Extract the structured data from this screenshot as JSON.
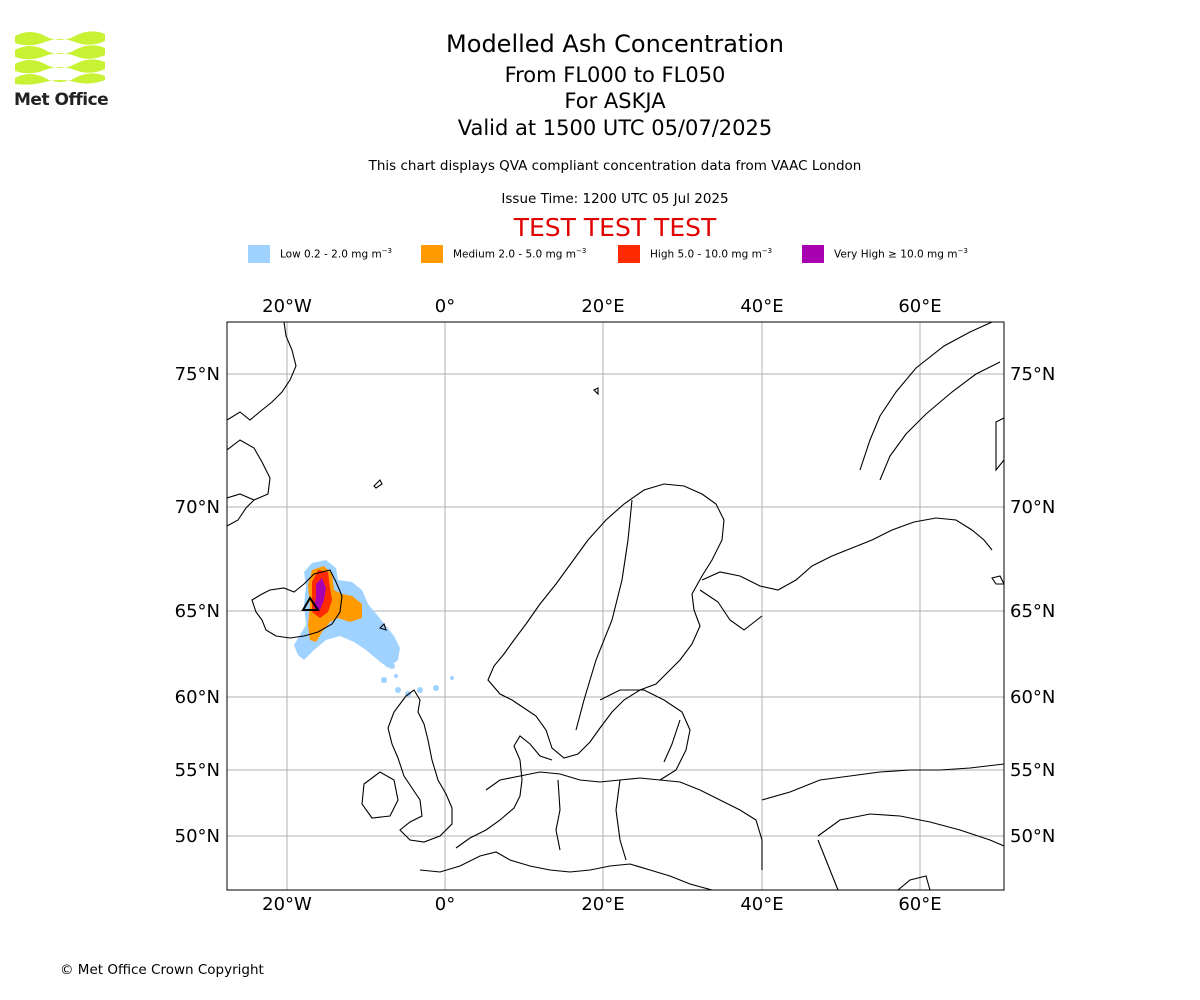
{
  "header": {
    "logo_text": "Met Office",
    "title": "Modelled Ash Concentration",
    "flight_levels": "From FL000 to FL050",
    "volcano": "For ASKJA",
    "valid_time": "Valid at 1500 UTC 05/07/2025",
    "description": "This chart displays QVA compliant concentration data from VAAC London",
    "issue_time": "Issue Time: 1200 UTC 05 Jul 2025",
    "test_banner": "TEST TEST TEST"
  },
  "legend": [
    {
      "label": "Low 0.2 - 2.0 mg m",
      "sup": "−3",
      "color": "#a0d2ff"
    },
    {
      "label": "Medium 2.0 - 5.0 mg m",
      "sup": "−3",
      "color": "#ff9a00"
    },
    {
      "label": "High 5.0 - 10.0 mg m",
      "sup": "−3",
      "color": "#ff2a00"
    },
    {
      "label": "Very High ≥ 10.0 mg m",
      "sup": "−3",
      "color": "#a800b0"
    }
  ],
  "map": {
    "projection": "stereographic (north polar)",
    "grid": true,
    "lon_ticks": [
      "20°W",
      "0°",
      "20°E",
      "40°E",
      "60°E"
    ],
    "lat_ticks": [
      "75°N",
      "70°N",
      "65°N",
      "60°N",
      "55°N",
      "50°N"
    ],
    "volcano_marker": "triangle",
    "ash_extent_description": "Ash cloud over Iceland extending south-east toward the Faroe Islands"
  },
  "footer": {
    "copyright": "© Met Office Crown Copyright"
  }
}
